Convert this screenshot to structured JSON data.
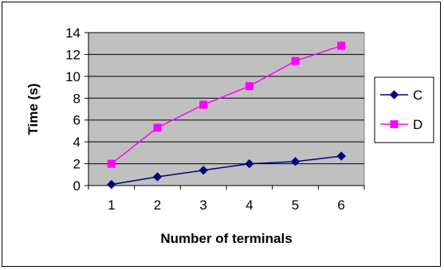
{
  "chart_data": {
    "type": "line",
    "title": "",
    "xlabel": "Number of terminals",
    "ylabel": "Time (s)",
    "categories": [
      "1",
      "2",
      "3",
      "4",
      "5",
      "6"
    ],
    "ylim": [
      0,
      14
    ],
    "yticks": [
      "0",
      "2",
      "4",
      "6",
      "8",
      "10",
      "12",
      "14"
    ],
    "grid": "horizontal",
    "legend_position": "right",
    "plot_background": "#C0C0C0",
    "series": [
      {
        "name": "C",
        "values": [
          0.1,
          0.8,
          1.4,
          2.0,
          2.2,
          2.7
        ],
        "color": "#000080",
        "marker": "diamond"
      },
      {
        "name": "D",
        "values": [
          2.0,
          5.3,
          7.4,
          9.1,
          11.4,
          12.8
        ],
        "color": "#FF00FF",
        "marker": "square"
      }
    ]
  }
}
